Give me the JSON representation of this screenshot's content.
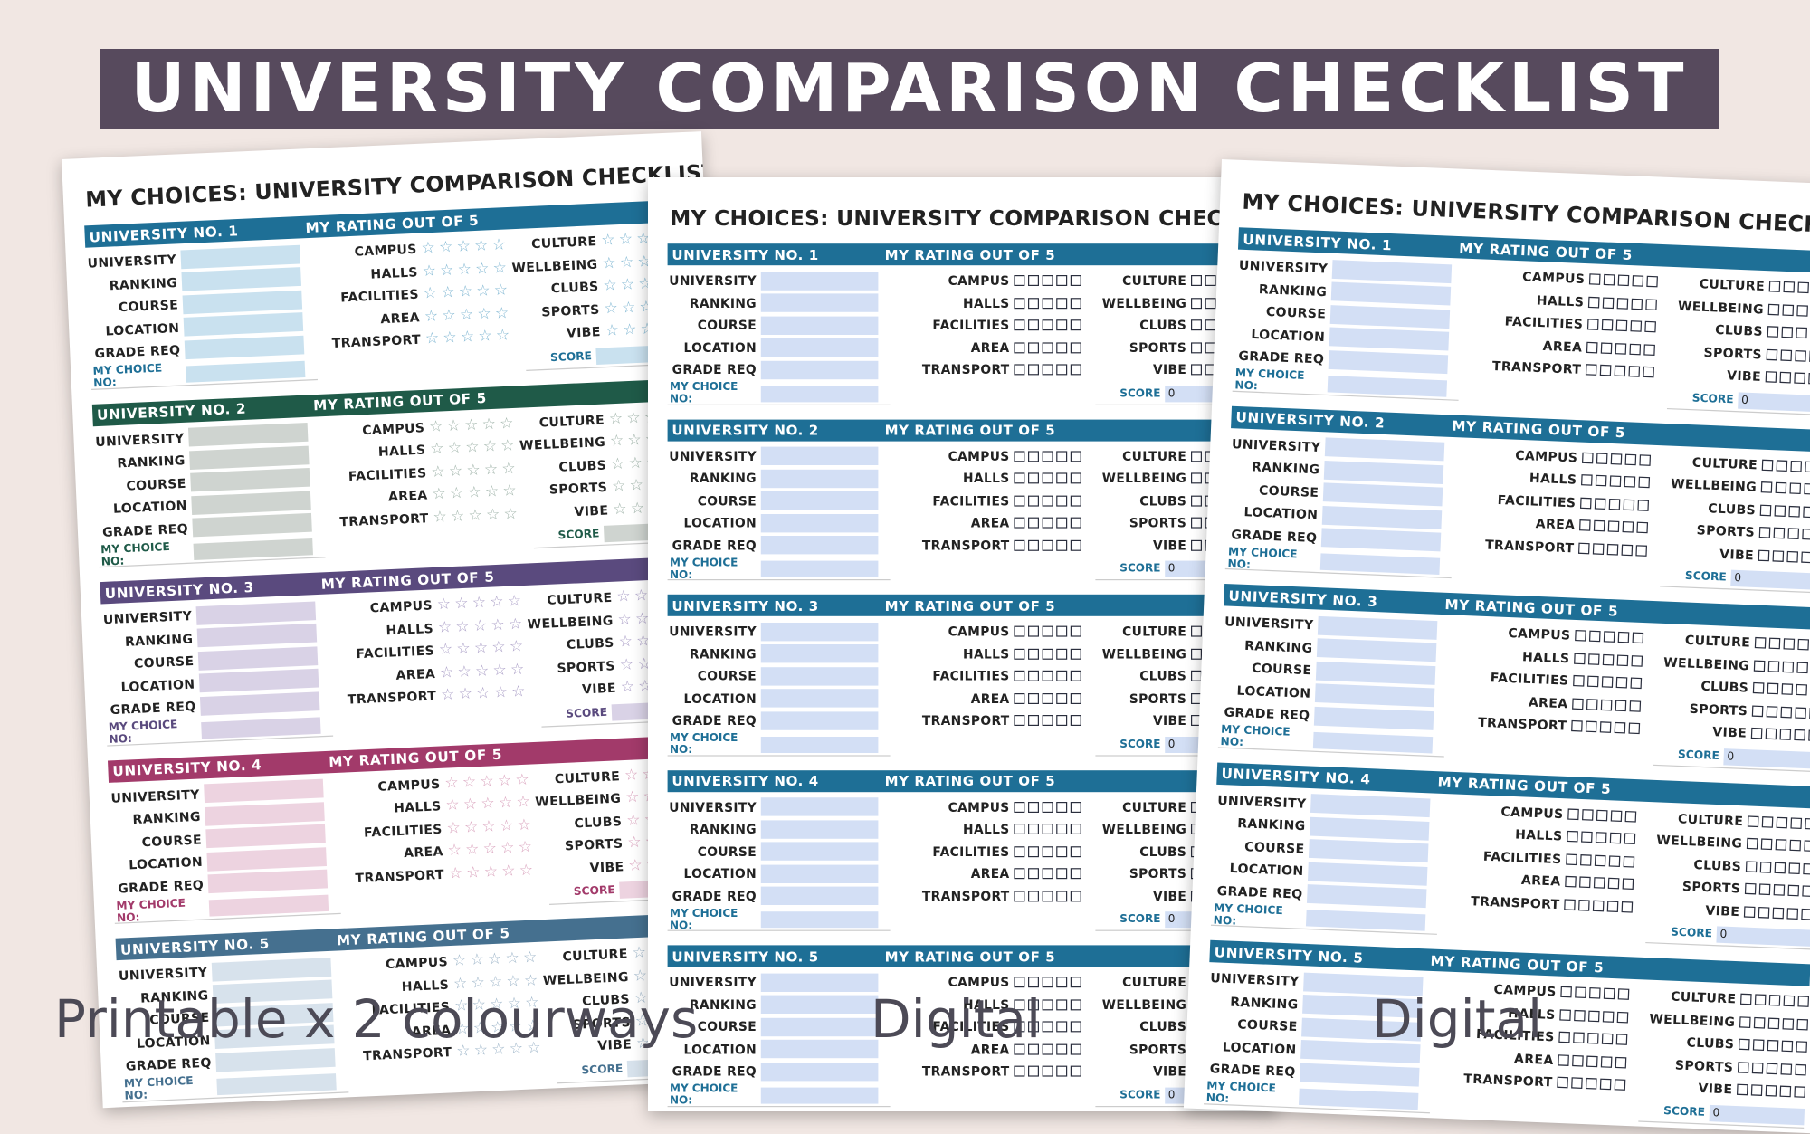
{
  "banner": "UNIVERSITY COMPARISON CHECKLIST",
  "sheet": {
    "title": "MY CHOICES: UNIVERSITY COMPARISON CHECKLIST",
    "rating_heading": "MY RATING OUT OF 5",
    "fields": [
      "UNIVERSITY",
      "RANKING",
      "COURSE",
      "LOCATION",
      "GRADE REQ"
    ],
    "choice_label": "MY CHOICE NO:",
    "ratings_a": [
      "CAMPUS",
      "HALLS",
      "FACILITIES",
      "AREA",
      "TRANSPORT"
    ],
    "ratings_b": [
      "CULTURE",
      "WELLBEING",
      "CLUBS",
      "SPORTS",
      "VIBE"
    ],
    "score_label": "SCORE",
    "digital_score_value": "0",
    "universities": [
      "UNIVERSITY NO. 1",
      "UNIVERSITY NO. 2",
      "UNIVERSITY NO. 3",
      "UNIVERSITY NO. 4",
      "UNIVERSITY NO. 5"
    ]
  },
  "colourways": {
    "multi": {
      "heads": [
        "#1e6f96",
        "#1f5a48",
        "#5a4a7e",
        "#a23a6a",
        "#45708f"
      ],
      "boxes": [
        "#c9e1ef",
        "#cfd4d0",
        "#d9d2e6",
        "#edd3e0",
        "#d7e2ec"
      ],
      "stars": [
        "#7fb6d2",
        "#9fb3a9",
        "#a99dc6",
        "#d9a1bc",
        "#9cb4c8"
      ]
    },
    "blue": {
      "head": "#1e6f96",
      "box": "#d3dff5"
    }
  },
  "captions": [
    "Printable x 2 colourways",
    "Digital",
    "Digital"
  ]
}
